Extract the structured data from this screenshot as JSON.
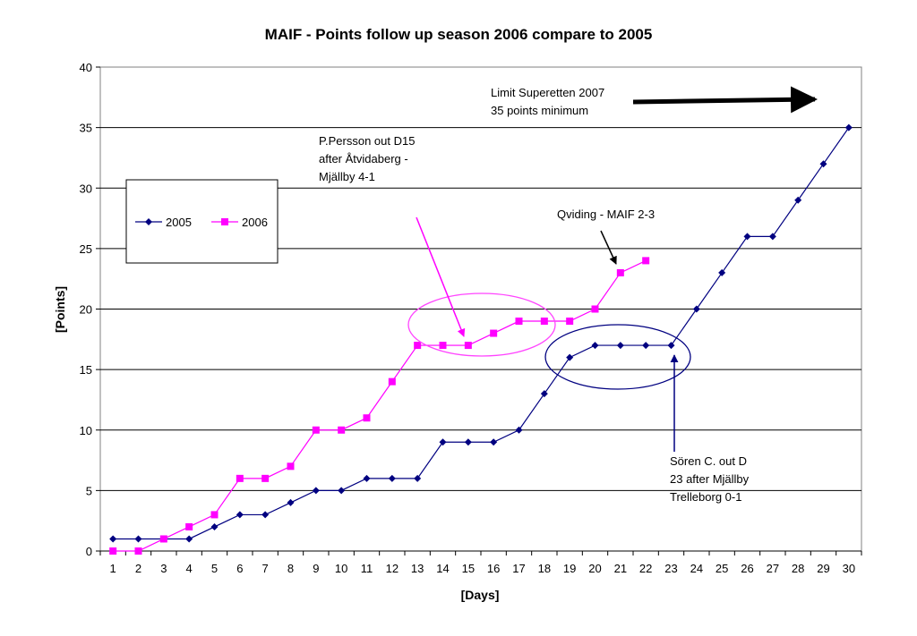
{
  "chart_data": {
    "type": "line",
    "title": "MAIF - Points follow up season 2006 compare to 2005",
    "xlabel": "[Days]",
    "ylabel": "[Points]",
    "ylim": [
      0,
      40
    ],
    "yticks": [
      0,
      5,
      10,
      15,
      20,
      25,
      30,
      35,
      40
    ],
    "x": [
      1,
      2,
      3,
      4,
      5,
      6,
      7,
      8,
      9,
      10,
      11,
      12,
      13,
      14,
      15,
      16,
      17,
      18,
      19,
      20,
      21,
      22,
      23,
      24,
      25,
      26,
      27,
      28,
      29,
      30
    ],
    "grid": true,
    "legend_position": "left",
    "series": [
      {
        "name": "2005",
        "color": "#000080",
        "marker": "diamond",
        "x": [
          1,
          2,
          3,
          4,
          5,
          6,
          7,
          8,
          9,
          10,
          11,
          12,
          13,
          14,
          15,
          16,
          17,
          18,
          19,
          20,
          21,
          22,
          23,
          24,
          25,
          26,
          27,
          28,
          29,
          30
        ],
        "values": [
          1,
          1,
          1,
          1,
          2,
          3,
          3,
          4,
          5,
          5,
          6,
          6,
          6,
          9,
          9,
          9,
          10,
          13,
          16,
          17,
          17,
          17,
          17,
          20,
          23,
          26,
          26,
          29,
          32,
          35
        ]
      },
      {
        "name": "2006",
        "color": "#ff00ff",
        "marker": "square",
        "x": [
          1,
          2,
          3,
          4,
          5,
          6,
          7,
          8,
          9,
          10,
          11,
          12,
          13,
          14,
          15,
          16,
          17,
          18,
          19,
          20,
          21,
          22
        ],
        "values": [
          0,
          0,
          1,
          2,
          3,
          6,
          6,
          7,
          10,
          10,
          11,
          14,
          17,
          17,
          17,
          18,
          19,
          19,
          19,
          20,
          23,
          24
        ]
      }
    ],
    "annotations": [
      {
        "id": "limit",
        "lines": [
          "Limit Superetten 2007",
          "35 points minimum"
        ]
      },
      {
        "id": "persson",
        "lines": [
          "P.Persson out D15",
          "after Åtvidaberg -",
          "Mjällby 4-1"
        ]
      },
      {
        "id": "qviding",
        "lines": [
          "Qviding - MAIF 2-3"
        ]
      },
      {
        "id": "soren",
        "lines": [
          "Sören C. out D",
          "23 after Mjällby",
          "Trelleborg 0-1"
        ]
      }
    ]
  }
}
